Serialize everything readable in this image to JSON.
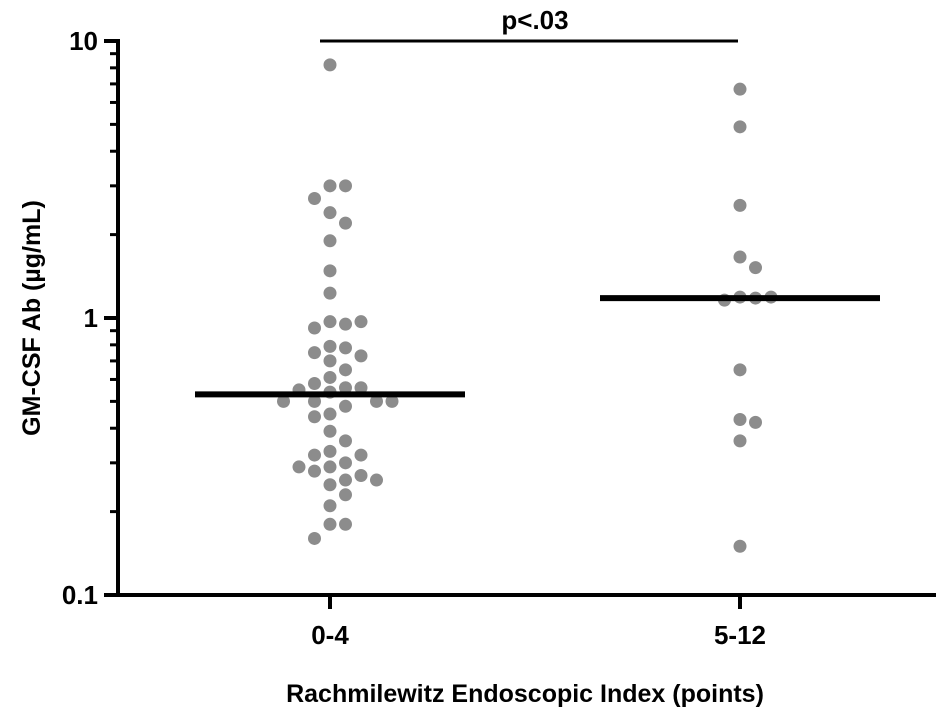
{
  "chart_data": {
    "type": "scatter",
    "subtype": "dot-plot",
    "xlabel": "Rachmilewitz Endoscopic Index (points)",
    "ylabel": "GM-CSF Ab (µg/mL)",
    "yscale": "log",
    "ylim": [
      0.1,
      10
    ],
    "yticks": [
      {
        "value": 0.1,
        "label": "0.1"
      },
      {
        "value": 1,
        "label": "1"
      },
      {
        "value": 10,
        "label": "10"
      }
    ],
    "categories": [
      "0-4",
      "5-12"
    ],
    "series": [
      {
        "category": "0-4",
        "median": 0.53,
        "values": [
          8.2,
          3.0,
          3.0,
          2.7,
          2.4,
          2.2,
          1.9,
          1.48,
          1.23,
          0.97,
          0.95,
          0.92,
          0.97,
          0.79,
          0.78,
          0.75,
          0.73,
          0.7,
          0.65,
          0.61,
          0.58,
          0.56,
          0.56,
          0.55,
          0.54,
          0.5,
          0.5,
          0.5,
          0.5,
          0.48,
          0.45,
          0.44,
          0.39,
          0.36,
          0.33,
          0.32,
          0.32,
          0.3,
          0.29,
          0.29,
          0.28,
          0.27,
          0.26,
          0.26,
          0.25,
          0.23,
          0.21,
          0.18,
          0.18,
          0.16
        ]
      },
      {
        "category": "5-12",
        "median": 1.18,
        "values": [
          6.7,
          4.9,
          2.55,
          1.66,
          1.52,
          1.19,
          1.18,
          1.16,
          1.19,
          0.65,
          0.43,
          0.42,
          0.36,
          0.15
        ]
      }
    ],
    "annotation": {
      "text": "p<.03",
      "from": "0-4",
      "to": "5-12"
    },
    "colors": {
      "point": "#8c8c8c",
      "median": "#000000",
      "axis": "#000000"
    },
    "grid": false
  }
}
